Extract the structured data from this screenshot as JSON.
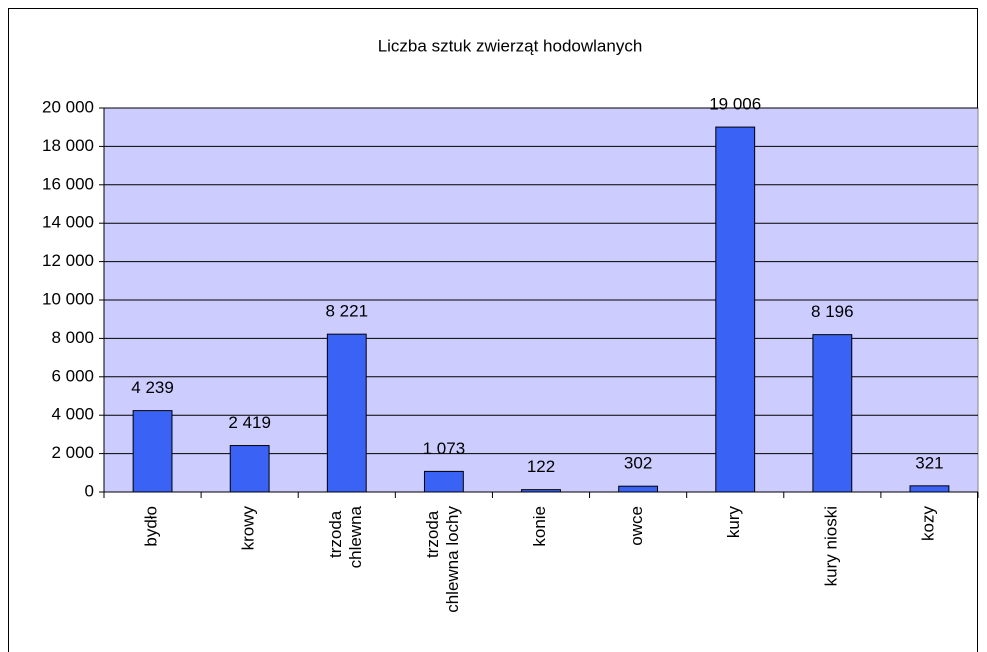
{
  "chart_data": {
    "type": "bar",
    "title": "Liczba sztuk zwierząt hodowlanych",
    "categories": [
      "bydło",
      "krowy",
      "trzoda chlewna",
      "trzoda chlewna lochy",
      "konie",
      "owce",
      "kury",
      "kury nioski",
      "kozy"
    ],
    "values": [
      4239,
      2419,
      8221,
      1073,
      122,
      302,
      19006,
      8196,
      321
    ],
    "value_labels": [
      "4 239",
      "2 419",
      "8 221",
      "1 073",
      "122",
      "302",
      "19 006",
      "8 196",
      "321"
    ],
    "color": "#3a62f5",
    "ylim": [
      0,
      20000
    ],
    "yticks": [
      0,
      {
        "value": 2000,
        "label": "2 000"
      },
      {
        "value": 4000,
        "label": "4 000"
      },
      {
        "value": 6000,
        "label": "6 000"
      },
      {
        "value": 8000,
        "label": "8 000"
      },
      {
        "value": 10000,
        "label": "10 000"
      },
      {
        "value": 12000,
        "label": "12 000"
      },
      {
        "value": 14000,
        "label": "14 000"
      },
      {
        "value": 16000,
        "label": "16 000"
      },
      {
        "value": 18000,
        "label": "18 000"
      },
      {
        "value": 20000,
        "label": "20 000"
      }
    ],
    "grid": true
  }
}
